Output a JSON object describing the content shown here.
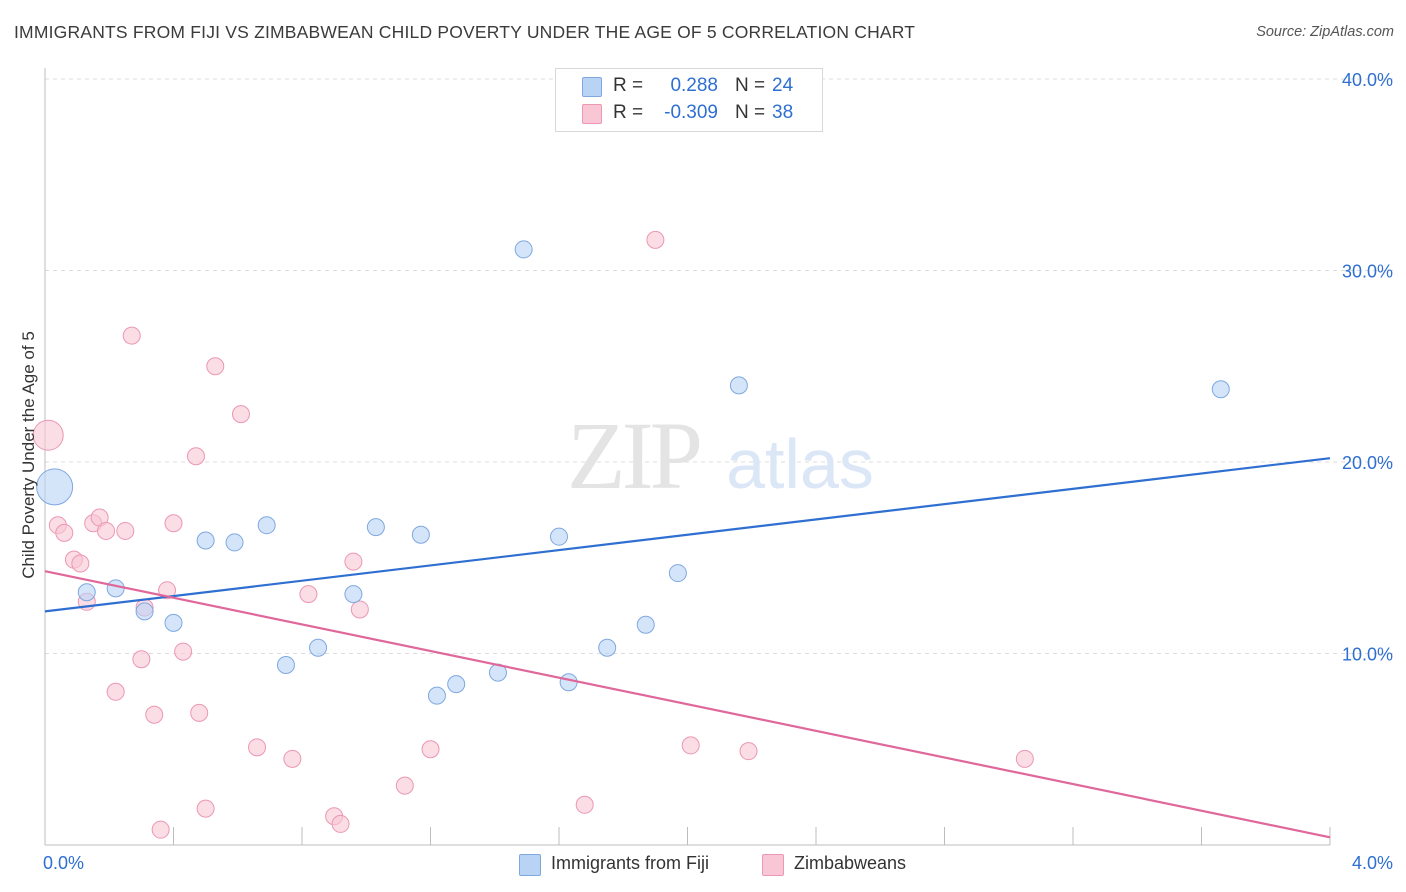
{
  "title": "IMMIGRANTS FROM FIJI VS ZIMBABWEAN CHILD POVERTY UNDER THE AGE OF 5 CORRELATION CHART",
  "source": "Source: ZipAtlas.com",
  "watermark": {
    "zip": "ZIP",
    "atlas": "atlas"
  },
  "legend": {
    "r_label": "R =",
    "n_label": "N =",
    "rows": [
      {
        "r": "0.288",
        "n": "24"
      },
      {
        "r": "-0.309",
        "n": "38"
      }
    ]
  },
  "colors": {
    "fiji_fill": "#b9d3f5",
    "fiji_stroke": "#7fa8e0",
    "fiji_line": "#2e6fd1",
    "zim_fill": "#f8c6d5",
    "zim_stroke": "#ec97b3",
    "zim_line": "#e0679a",
    "accent_text": "#2e6fd1",
    "grid": "#dcdcdc"
  },
  "chart_data": {
    "type": "scatter",
    "title": "IMMIGRANTS FROM FIJI VS ZIMBABWEAN CHILD POVERTY UNDER THE AGE OF 5 CORRELATION CHART",
    "xlabel": "",
    "ylabel": "Child Poverty Under the Age of 5",
    "xlim": [
      0,
      4
    ],
    "ylim": [
      0,
      40
    ],
    "x_tick_labels": [
      "0.0%",
      "4.0%"
    ],
    "y_ticks": [
      10,
      20,
      30,
      40
    ],
    "y_tick_labels": [
      "10.0%",
      "20.0%",
      "30.0%",
      "40.0%"
    ],
    "grid": true,
    "legend_position": "top-center",
    "series": [
      {
        "name": "Immigrants from Fiji",
        "r": 0.288,
        "n": 24,
        "trend": [
          [
            0,
            12.2
          ],
          [
            4,
            20.2
          ]
        ],
        "points": [
          {
            "x": 0.03,
            "y": 18.7,
            "s": 3
          },
          {
            "x": 0.13,
            "y": 13.2,
            "s": 1
          },
          {
            "x": 0.22,
            "y": 13.4,
            "s": 1
          },
          {
            "x": 0.31,
            "y": 12.2,
            "s": 1
          },
          {
            "x": 0.4,
            "y": 11.6,
            "s": 1
          },
          {
            "x": 0.5,
            "y": 15.9,
            "s": 1
          },
          {
            "x": 0.59,
            "y": 15.8,
            "s": 1
          },
          {
            "x": 0.69,
            "y": 16.7,
            "s": 1
          },
          {
            "x": 0.75,
            "y": 9.4,
            "s": 1
          },
          {
            "x": 0.85,
            "y": 10.3,
            "s": 1
          },
          {
            "x": 0.96,
            "y": 13.1,
            "s": 1
          },
          {
            "x": 1.03,
            "y": 16.6,
            "s": 1
          },
          {
            "x": 1.17,
            "y": 16.2,
            "s": 1
          },
          {
            "x": 1.22,
            "y": 7.8,
            "s": 1
          },
          {
            "x": 1.28,
            "y": 8.4,
            "s": 1
          },
          {
            "x": 1.41,
            "y": 9.0,
            "s": 1
          },
          {
            "x": 1.49,
            "y": 31.1,
            "s": 1
          },
          {
            "x": 1.6,
            "y": 16.1,
            "s": 1
          },
          {
            "x": 1.63,
            "y": 8.5,
            "s": 1
          },
          {
            "x": 1.75,
            "y": 10.3,
            "s": 1
          },
          {
            "x": 1.87,
            "y": 11.5,
            "s": 1
          },
          {
            "x": 1.97,
            "y": 14.2,
            "s": 1
          },
          {
            "x": 2.16,
            "y": 24.0,
            "s": 1
          },
          {
            "x": 3.66,
            "y": 23.8,
            "s": 1
          }
        ]
      },
      {
        "name": "Zimbabweans",
        "r": -0.309,
        "n": 38,
        "trend": [
          [
            0,
            14.3
          ],
          [
            4,
            0.4
          ]
        ],
        "points": [
          {
            "x": 0.01,
            "y": 21.4,
            "s": 2
          },
          {
            "x": 0.04,
            "y": 16.7,
            "s": 1
          },
          {
            "x": 0.06,
            "y": 16.3,
            "s": 1
          },
          {
            "x": 0.09,
            "y": 14.9,
            "s": 1
          },
          {
            "x": 0.11,
            "y": 14.7,
            "s": 1
          },
          {
            "x": 0.13,
            "y": 12.7,
            "s": 1
          },
          {
            "x": 0.15,
            "y": 16.8,
            "s": 1
          },
          {
            "x": 0.17,
            "y": 17.1,
            "s": 1
          },
          {
            "x": 0.19,
            "y": 16.4,
            "s": 1
          },
          {
            "x": 0.22,
            "y": 8.0,
            "s": 1
          },
          {
            "x": 0.25,
            "y": 16.4,
            "s": 1
          },
          {
            "x": 0.27,
            "y": 26.6,
            "s": 1
          },
          {
            "x": 0.3,
            "y": 9.7,
            "s": 1
          },
          {
            "x": 0.31,
            "y": 12.4,
            "s": 1
          },
          {
            "x": 0.34,
            "y": 6.8,
            "s": 1
          },
          {
            "x": 0.36,
            "y": 0.8,
            "s": 1
          },
          {
            "x": 0.38,
            "y": 13.3,
            "s": 1
          },
          {
            "x": 0.4,
            "y": 16.8,
            "s": 1
          },
          {
            "x": 0.43,
            "y": 10.1,
            "s": 1
          },
          {
            "x": 0.47,
            "y": 20.3,
            "s": 1
          },
          {
            "x": 0.48,
            "y": 6.9,
            "s": 1
          },
          {
            "x": 0.5,
            "y": 1.9,
            "s": 1
          },
          {
            "x": 0.53,
            "y": 25.0,
            "s": 1
          },
          {
            "x": 0.61,
            "y": 22.5,
            "s": 1
          },
          {
            "x": 0.66,
            "y": 5.1,
            "s": 1
          },
          {
            "x": 0.77,
            "y": 4.5,
            "s": 1
          },
          {
            "x": 0.82,
            "y": 13.1,
            "s": 1
          },
          {
            "x": 0.9,
            "y": 1.5,
            "s": 1
          },
          {
            "x": 0.92,
            "y": 1.1,
            "s": 1
          },
          {
            "x": 0.96,
            "y": 14.8,
            "s": 1
          },
          {
            "x": 0.98,
            "y": 12.3,
            "s": 1
          },
          {
            "x": 1.12,
            "y": 3.1,
            "s": 1
          },
          {
            "x": 1.2,
            "y": 5.0,
            "s": 1
          },
          {
            "x": 1.68,
            "y": 2.1,
            "s": 1
          },
          {
            "x": 1.9,
            "y": 31.6,
            "s": 1
          },
          {
            "x": 2.01,
            "y": 5.2,
            "s": 1
          },
          {
            "x": 2.19,
            "y": 4.9,
            "s": 1
          },
          {
            "x": 3.05,
            "y": 4.5,
            "s": 1
          }
        ]
      }
    ]
  }
}
